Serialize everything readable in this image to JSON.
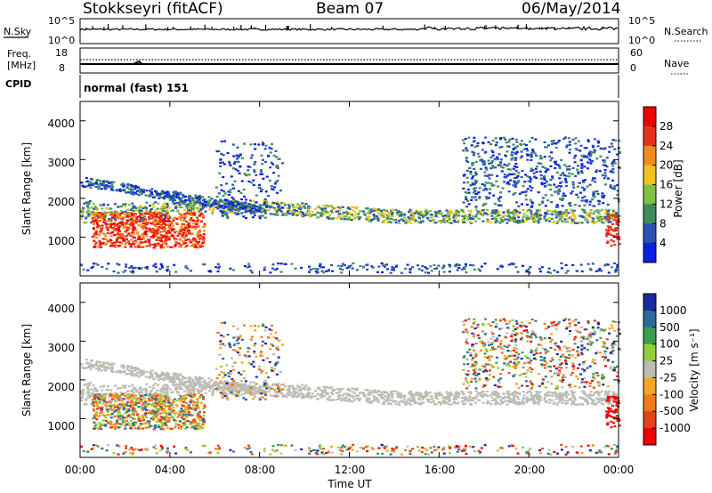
{
  "header": {
    "radar": "Stokkseyri (fitACF)",
    "beam": "Beam 07",
    "date": "06/May/2014"
  },
  "noise_panel": {
    "left_label": "N.Sky",
    "right_label": "N.Search",
    "left_ticks": [
      "10^5",
      "10^0"
    ],
    "right_ticks": [
      "10^5",
      "10^0"
    ]
  },
  "freq_panel": {
    "left_label_line1": "Freq.",
    "left_label_line2": "[MHz]",
    "left_ticks": [
      "18",
      "8"
    ],
    "right_label": "Nave",
    "right_ticks": [
      "60",
      "0"
    ]
  },
  "cpid": {
    "label": "CPID",
    "value": "normal (fast) 151"
  },
  "chart_data": [
    {
      "type": "heatmap",
      "name": "Power",
      "ylabel": "Slant Range [km]",
      "yticks": [
        "1000",
        "2000",
        "3000",
        "4000"
      ],
      "ylim": [
        0,
        4500
      ],
      "colorbar_label": "Power [dB]",
      "colorbar_ticks": [
        "4",
        "8",
        "12",
        "16",
        "20",
        "24",
        "28"
      ],
      "colorbar_range": [
        0,
        32
      ],
      "colors": [
        "#0a1fe0",
        "#2a52b5",
        "#3f8c5c",
        "#7dc243",
        "#f5c21d",
        "#f28c1e",
        "#e8321e",
        "#f00000"
      ]
    },
    {
      "type": "heatmap",
      "name": "Velocity",
      "ylabel": "Slant Range [km]",
      "yticks": [
        "1000",
        "2000",
        "3000",
        "4000"
      ],
      "ylim": [
        0,
        4500
      ],
      "colorbar_label": "Velocity [m s⁻¹]",
      "colorbar_ticks": [
        "1000",
        "500",
        "100",
        "25",
        "-25",
        "-100",
        "-500",
        "-1000"
      ],
      "colors": [
        "#1b2a9e",
        "#2d6a9a",
        "#3c9c52",
        "#8fd03a",
        "#bcbcb4",
        "#f5a623",
        "#f07a1d",
        "#e8421a",
        "#f00000"
      ]
    }
  ],
  "x_axis": {
    "ticks": [
      "00:00",
      "04:00",
      "08:00",
      "12:00",
      "16:00",
      "20:00",
      "00:00"
    ],
    "label": "Time UT"
  }
}
